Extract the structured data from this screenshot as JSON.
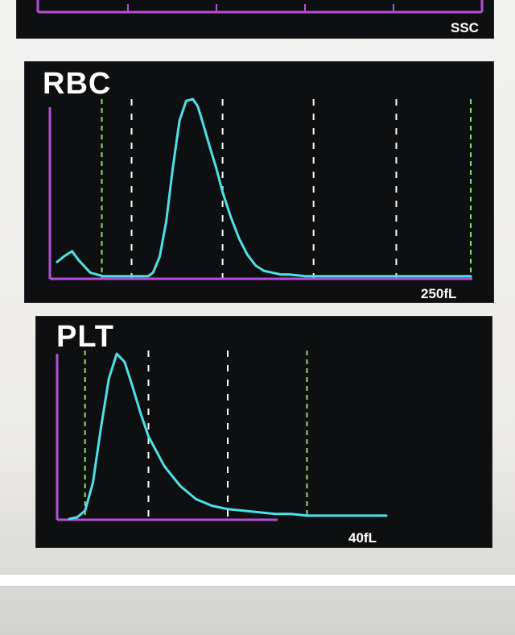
{
  "colors": {
    "axis": "#b24fd6",
    "curve": "#4fe0e6",
    "green_marker": "#8fe06a",
    "white_marker": "#ffffff",
    "panel_bg": "#0e0f10"
  },
  "chart_data": [
    {
      "type": "line",
      "title": "",
      "xmax_label": "SSC",
      "xlim": [
        0,
        1
      ],
      "note_visible": "partial panel, only bottom axis visible"
    },
    {
      "type": "line",
      "title": "RBC",
      "xmax_label": "250fL",
      "xlim": [
        0,
        250
      ],
      "ylim": [
        0,
        100
      ],
      "markers_green": [
        27,
        250
      ],
      "markers_white": [
        45,
        100,
        155,
        205
      ],
      "series": [
        {
          "x": [
            0,
            4,
            9,
            13,
            20,
            28,
            35,
            45,
            55,
            58,
            62,
            66,
            70,
            74,
            78,
            82,
            85,
            88,
            92,
            96,
            100,
            105,
            110,
            115,
            120,
            125,
            130,
            135,
            140,
            150,
            165,
            180,
            200,
            220,
            235,
            250
          ],
          "y": [
            9,
            12,
            15,
            10,
            3,
            1,
            1,
            1,
            1,
            3,
            12,
            32,
            62,
            88,
            99,
            100,
            96,
            87,
            74,
            62,
            48,
            34,
            22,
            13,
            7,
            4,
            3,
            2,
            2,
            1,
            1,
            1,
            1,
            1,
            1,
            1
          ]
        }
      ]
    },
    {
      "type": "line",
      "title": "PLT",
      "xmax_label": "40fL",
      "xlim": [
        0,
        40
      ],
      "ylim": [
        0,
        100
      ],
      "markers_green": [
        2,
        30
      ],
      "markers_white": [
        10,
        20
      ],
      "series": [
        {
          "x": [
            0,
            1,
            2,
            3,
            4,
            5,
            6,
            7,
            8,
            9,
            10,
            12,
            14,
            16,
            18,
            20,
            22,
            24,
            26,
            28,
            30,
            33,
            36,
            40
          ],
          "y": [
            0,
            1,
            5,
            22,
            55,
            85,
            100,
            95,
            80,
            64,
            50,
            32,
            20,
            12,
            8,
            6,
            5,
            4,
            3,
            3,
            2,
            2,
            2,
            2
          ]
        }
      ]
    }
  ]
}
